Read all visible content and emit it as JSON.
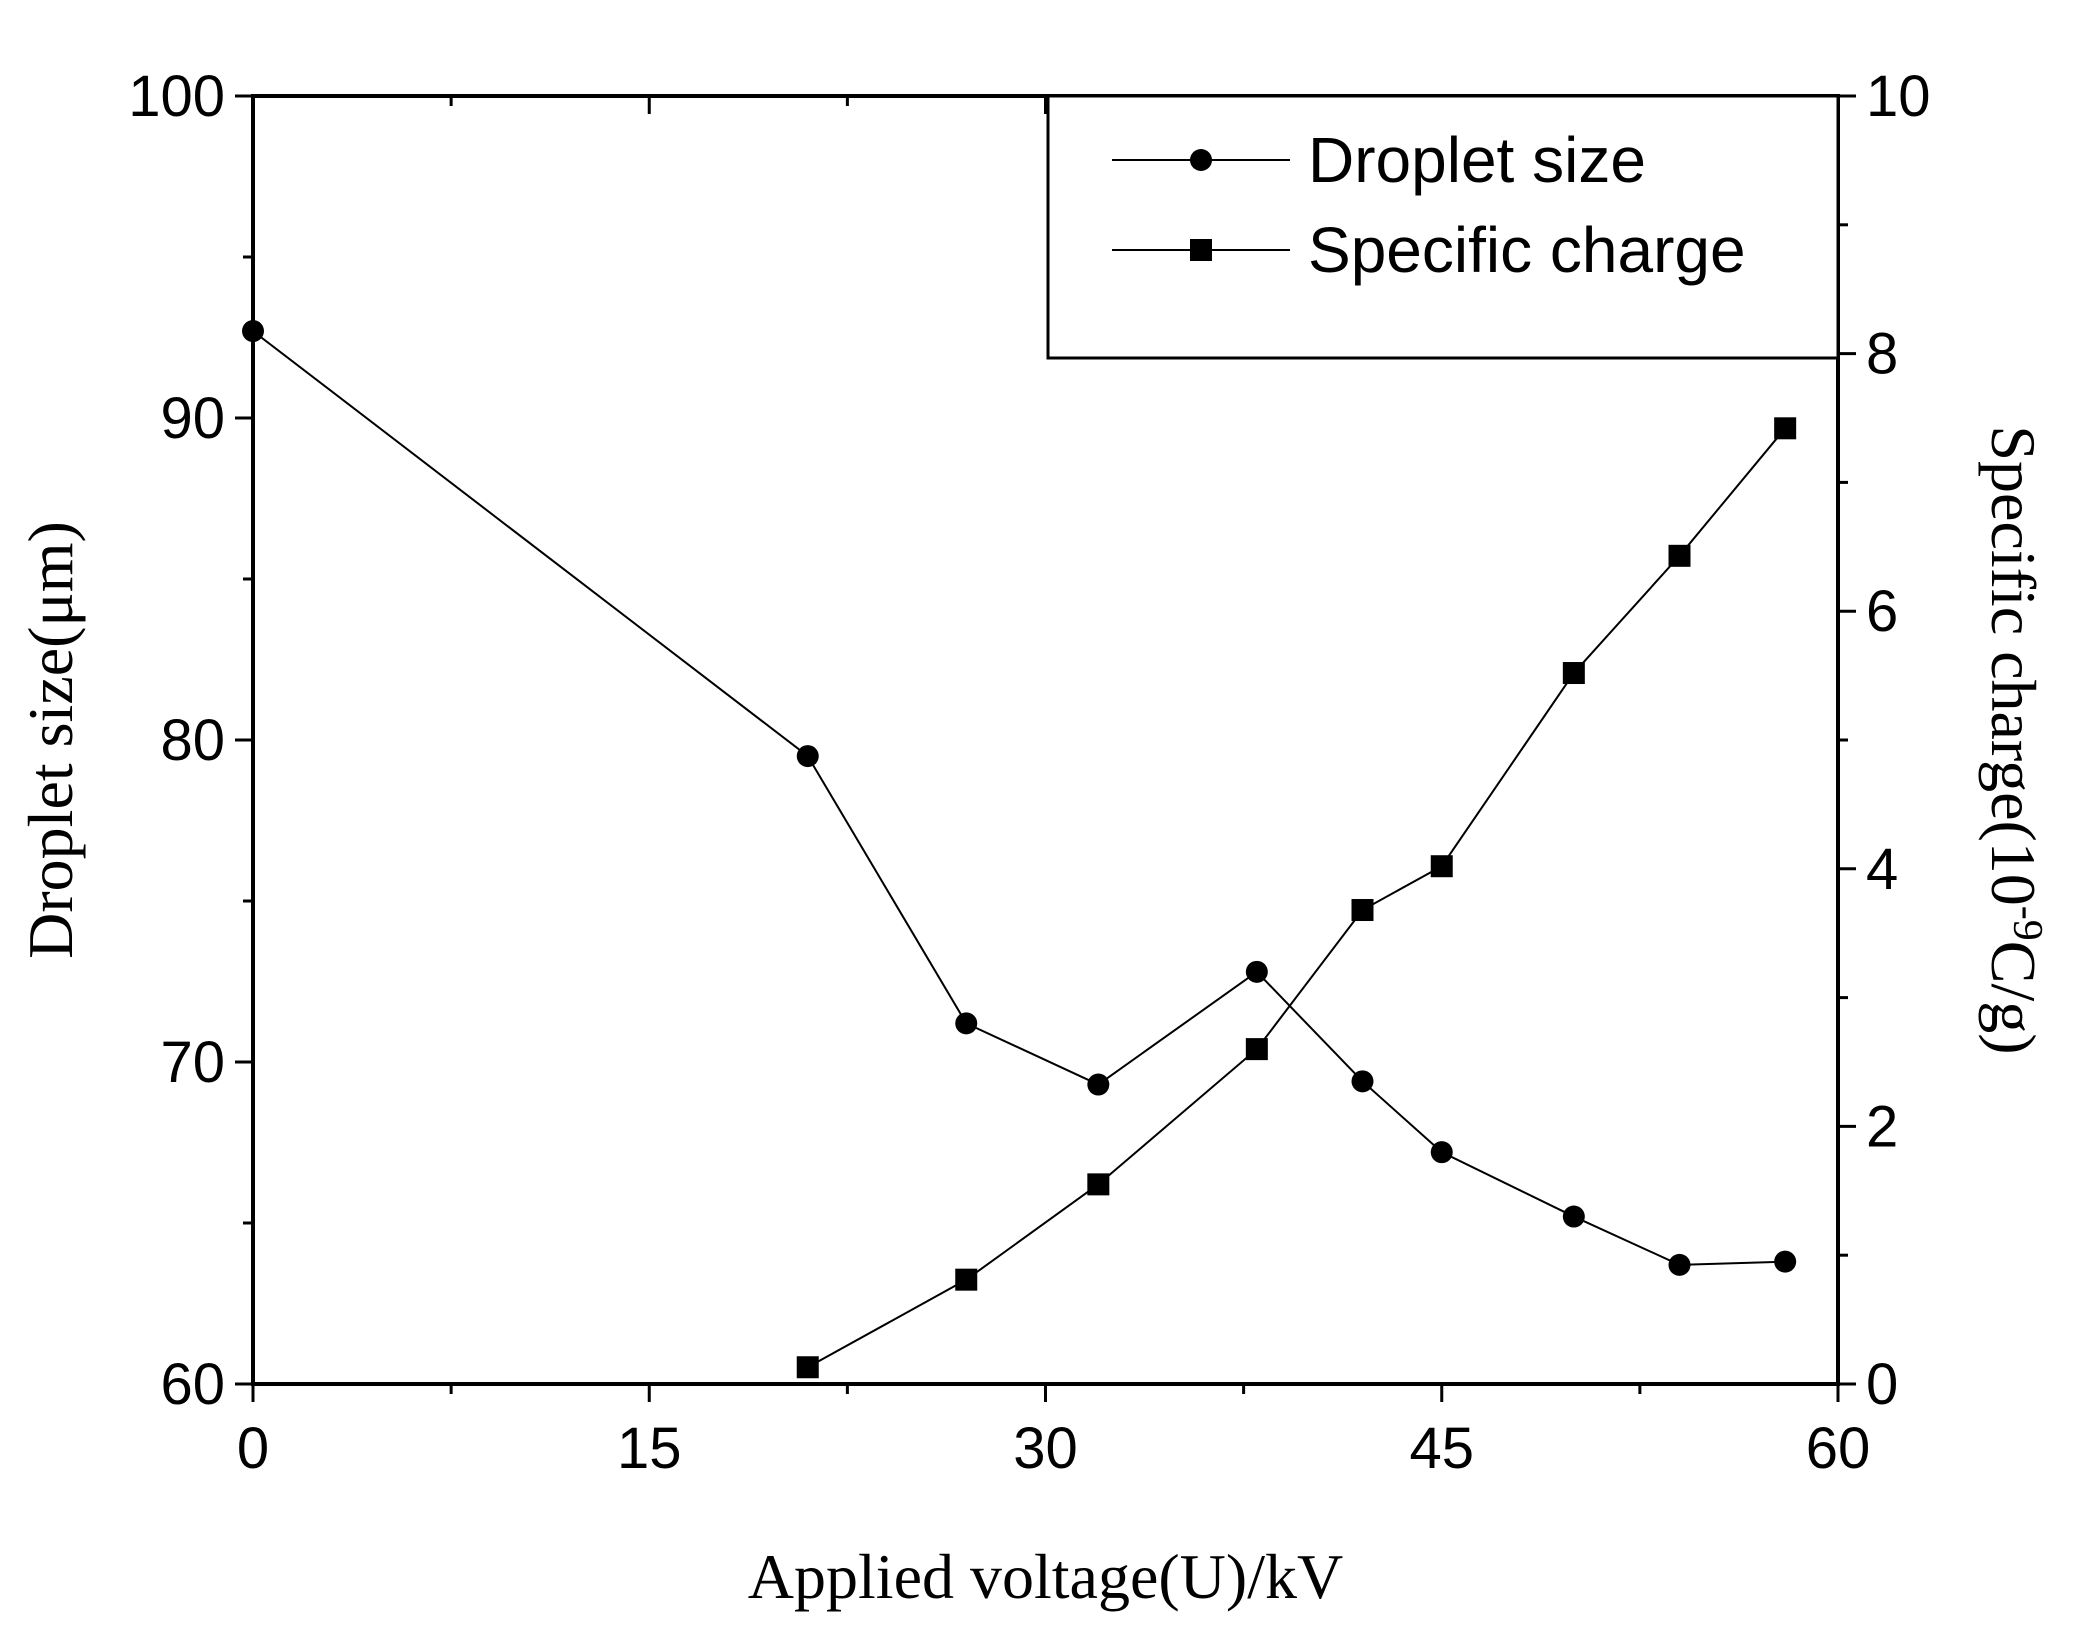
{
  "chart_data": {
    "type": "line",
    "title": "",
    "xlabel": "Applied voltage(U)/kV",
    "ylabel_left": "Droplet size(μm)",
    "ylabel_right_base": "Specific charge(10",
    "ylabel_right_sup": "-9",
    "ylabel_right_tail": "C/g)",
    "xlim": [
      0,
      60
    ],
    "ylim_left": [
      60,
      100
    ],
    "ylim_right": [
      0,
      10
    ],
    "x_ticks": [
      "0",
      "15",
      "30",
      "45",
      "60"
    ],
    "y_left_ticks": [
      "60",
      "70",
      "80",
      "90",
      "100"
    ],
    "y_right_ticks": [
      "0",
      "2",
      "4",
      "6",
      "8",
      "10"
    ],
    "grid": false,
    "legend_position": "top-right",
    "series": [
      {
        "name": "Droplet size",
        "axis": "left",
        "marker": "circle",
        "x": [
          0,
          21,
          27,
          32,
          38,
          42,
          45,
          50,
          54,
          58
        ],
        "y": [
          92.7,
          79.5,
          71.2,
          69.3,
          72.8,
          69.4,
          67.2,
          65.2,
          63.7,
          63.8
        ]
      },
      {
        "name": "Specific charge",
        "axis": "right",
        "marker": "square",
        "x": [
          21,
          27,
          32,
          38,
          42,
          45,
          50,
          54,
          58
        ],
        "y": [
          0.13,
          0.81,
          1.55,
          2.6,
          3.68,
          4.02,
          5.52,
          6.43,
          7.42
        ]
      }
    ]
  }
}
